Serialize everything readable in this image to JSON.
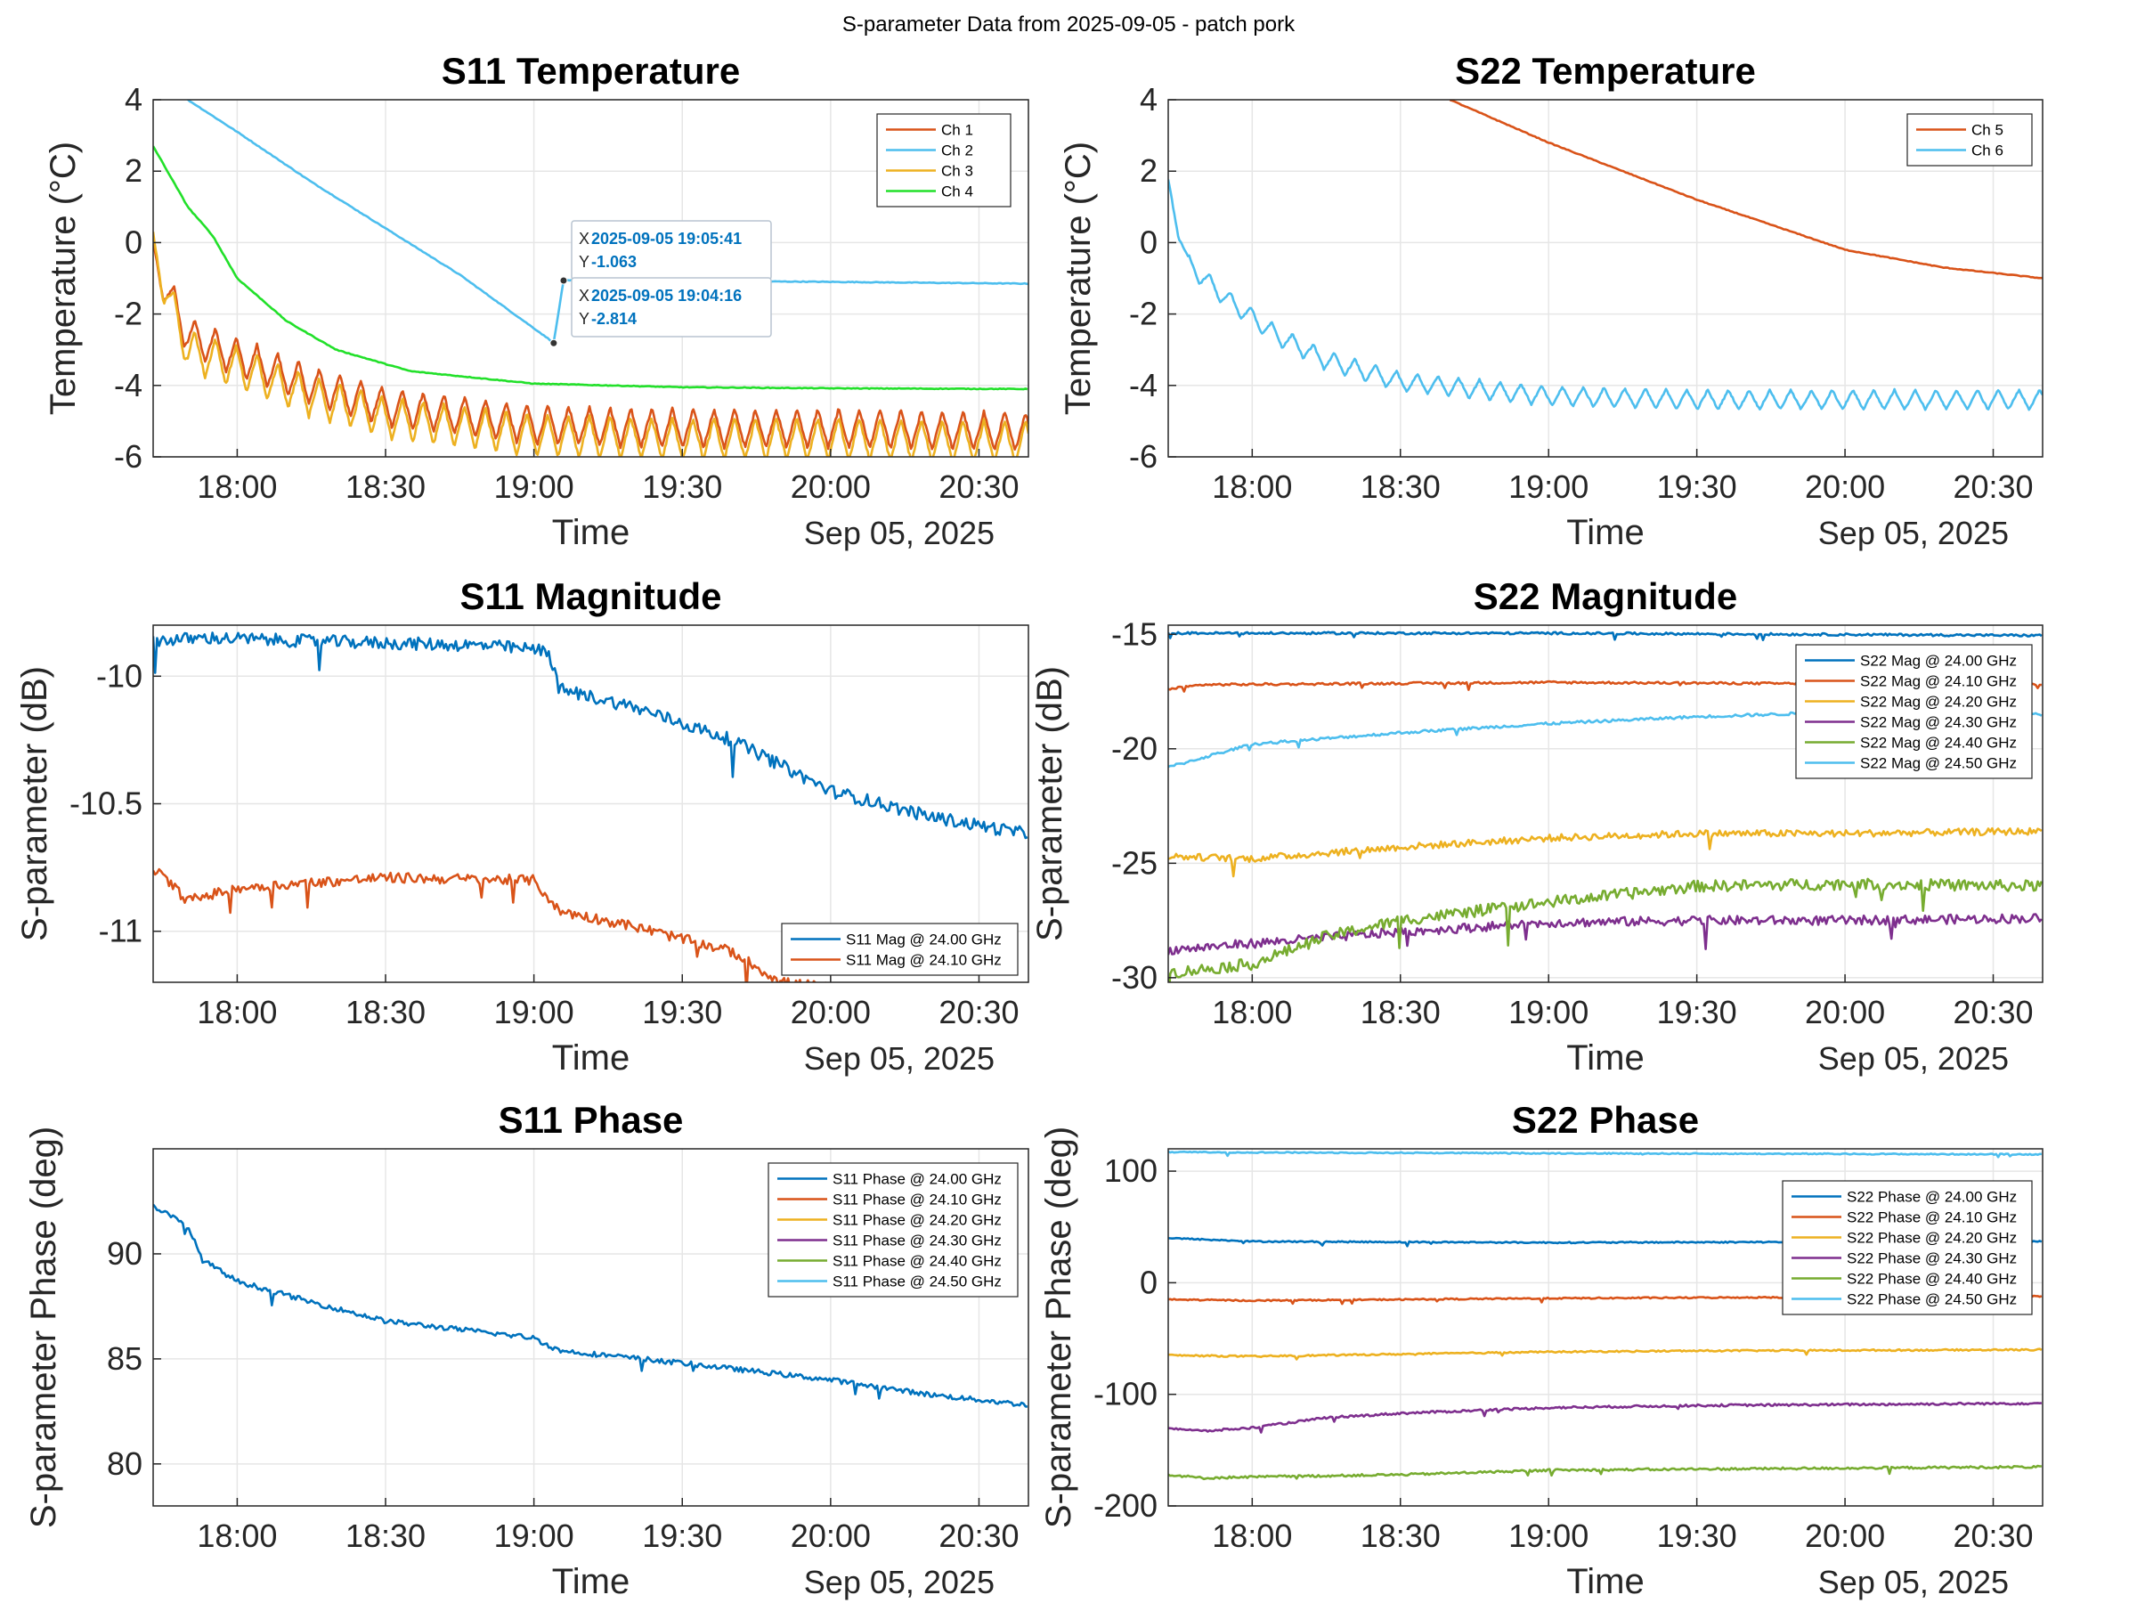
{
  "figure": {
    "suptitle": "S-parameter Data from 2025-09-05 - patch pork"
  },
  "chart_data": [
    {
      "id": "s11_temp",
      "type": "line",
      "title": "S11 Temperature",
      "xlabel": "Time",
      "ylabel": "Temperature (°C)",
      "date_label": "Sep 05, 2025",
      "x_start": "17:43",
      "x_end": "20:40",
      "x_ticks": [
        "18:00",
        "18:30",
        "19:00",
        "19:30",
        "20:00",
        "20:30"
      ],
      "ylim": [
        -6,
        4
      ],
      "y_ticks": [
        -6,
        -4,
        -2,
        0,
        2,
        4
      ],
      "legend_location": "top-right",
      "series": [
        {
          "name": "Ch 1",
          "color": "#d95319",
          "points": [
            [
              "17:43",
              -0.5
            ],
            [
              "17:50",
              -2.6
            ],
            [
              "18:00",
              -3.2
            ],
            [
              "18:15",
              -4.0
            ],
            [
              "18:30",
              -4.6
            ],
            [
              "19:00",
              -5.1
            ],
            [
              "19:30",
              -5.2
            ],
            [
              "20:00",
              -5.2
            ],
            [
              "20:40",
              -5.3
            ]
          ],
          "oscillation": {
            "amplitude": 1.1,
            "period_min": 4.2
          }
        },
        {
          "name": "Ch 2",
          "color": "#4dbeee",
          "points": [
            [
              "17:50",
              4.0
            ],
            [
              "18:00",
              3.1
            ],
            [
              "18:15",
              1.7
            ],
            [
              "18:30",
              0.4
            ],
            [
              "18:45",
              -0.9
            ],
            [
              "19:04",
              -2.8
            ],
            [
              "19:06",
              -1.06
            ],
            [
              "19:30",
              -1.07
            ],
            [
              "20:00",
              -1.1
            ],
            [
              "20:40",
              -1.15
            ]
          ]
        },
        {
          "name": "Ch 3",
          "color": "#edb120",
          "points": [
            [
              "17:43",
              -0.3
            ],
            [
              "17:50",
              -3.0
            ],
            [
              "18:00",
              -3.5
            ],
            [
              "18:15",
              -4.3
            ],
            [
              "18:30",
              -4.9
            ],
            [
              "19:00",
              -5.4
            ],
            [
              "19:30",
              -5.5
            ],
            [
              "20:00",
              -5.5
            ],
            [
              "20:40",
              -5.6
            ]
          ],
          "oscillation": {
            "amplitude": 1.2,
            "period_min": 4.2
          }
        },
        {
          "name": "Ch 4",
          "color": "#22e02a",
          "points": [
            [
              "17:43",
              2.7
            ],
            [
              "17:50",
              1.0
            ],
            [
              "17:55",
              0.2
            ],
            [
              "18:00",
              -1.0
            ],
            [
              "18:10",
              -2.2
            ],
            [
              "18:20",
              -3.0
            ],
            [
              "18:35",
              -3.6
            ],
            [
              "19:00",
              -3.95
            ],
            [
              "19:30",
              -4.05
            ],
            [
              "20:00",
              -4.08
            ],
            [
              "20:40",
              -4.1
            ]
          ]
        }
      ],
      "datatips": [
        {
          "x_label": "X",
          "x_value": "2025-09-05 19:05:41",
          "y_label": "Y",
          "y_value": "-1.063",
          "at": [
            "19:06",
            -1.063
          ]
        },
        {
          "x_label": "X",
          "x_value": "2025-09-05 19:04:16",
          "y_label": "Y",
          "y_value": "-2.814",
          "at": [
            "19:04",
            -2.814
          ]
        }
      ]
    },
    {
      "id": "s22_temp",
      "type": "line",
      "title": "S22 Temperature",
      "xlabel": "Time",
      "ylabel": "Temperature (°C)",
      "date_label": "Sep 05, 2025",
      "x_start": "17:43",
      "x_end": "20:40",
      "x_ticks": [
        "18:00",
        "18:30",
        "19:00",
        "19:30",
        "20:00",
        "20:30"
      ],
      "ylim": [
        -6,
        4
      ],
      "y_ticks": [
        -6,
        -4,
        -2,
        0,
        2,
        4
      ],
      "legend_location": "top-right",
      "series": [
        {
          "name": "Ch 5",
          "color": "#d95319",
          "points": [
            [
              "18:40",
              4.0
            ],
            [
              "19:00",
              2.8
            ],
            [
              "19:30",
              1.2
            ],
            [
              "20:00",
              -0.2
            ],
            [
              "20:20",
              -0.7
            ],
            [
              "20:40",
              -1.0
            ]
          ]
        },
        {
          "name": "Ch 6",
          "color": "#4dbeee",
          "points": [
            [
              "17:43",
              1.5
            ],
            [
              "17:47",
              -0.6
            ],
            [
              "17:55",
              -1.6
            ],
            [
              "18:05",
              -2.6
            ],
            [
              "18:15",
              -3.3
            ],
            [
              "18:30",
              -3.9
            ],
            [
              "19:00",
              -4.3
            ],
            [
              "19:30",
              -4.4
            ],
            [
              "20:00",
              -4.4
            ],
            [
              "20:40",
              -4.4
            ]
          ],
          "oscillation": {
            "amplitude": 0.55,
            "period_min": 4.2
          }
        }
      ]
    },
    {
      "id": "s11_mag",
      "type": "line",
      "title": "S11 Magnitude",
      "xlabel": "Time",
      "ylabel": "S-parameter (dB)",
      "date_label": "Sep 05, 2025",
      "x_start": "17:43",
      "x_end": "20:40",
      "x_ticks": [
        "18:00",
        "18:30",
        "19:00",
        "19:30",
        "20:00",
        "20:30"
      ],
      "ylim": [
        -11.2,
        -9.8
      ],
      "y_ticks": [
        -11,
        -10.5,
        -10
      ],
      "legend_location": "bottom-right",
      "series": [
        {
          "name": "S11 Mag @ 24.00 GHz",
          "color": "#0072bd",
          "points": [
            [
              "17:43",
              -9.86
            ],
            [
              "17:55",
              -9.85
            ],
            [
              "18:10",
              -9.86
            ],
            [
              "18:30",
              -9.87
            ],
            [
              "18:50",
              -9.88
            ],
            [
              "19:03",
              -9.9
            ],
            [
              "19:05",
              -10.05
            ],
            [
              "19:20",
              -10.12
            ],
            [
              "19:40",
              -10.25
            ],
            [
              "20:00",
              -10.45
            ],
            [
              "20:20",
              -10.55
            ],
            [
              "20:40",
              -10.62
            ]
          ],
          "noise": 0.025
        },
        {
          "name": "S11 Mag @ 24.10 GHz",
          "color": "#d95319",
          "points": [
            [
              "17:43",
              -10.75
            ],
            [
              "17:50",
              -10.88
            ],
            [
              "18:00",
              -10.83
            ],
            [
              "18:30",
              -10.79
            ],
            [
              "19:00",
              -10.8
            ],
            [
              "19:05",
              -10.92
            ],
            [
              "19:20",
              -10.98
            ],
            [
              "19:40",
              -11.08
            ],
            [
              "19:50",
              -11.2
            ],
            [
              "20:00",
              -11.22
            ]
          ],
          "noise": 0.02
        }
      ]
    },
    {
      "id": "s22_mag",
      "type": "line",
      "title": "S22 Magnitude",
      "xlabel": "Time",
      "ylabel": "S-parameter (dB)",
      "date_label": "Sep 05, 2025",
      "x_start": "17:43",
      "x_end": "20:40",
      "x_ticks": [
        "18:00",
        "18:30",
        "19:00",
        "19:30",
        "20:00",
        "20:30"
      ],
      "ylim": [
        -30.2,
        -14.6
      ],
      "y_ticks": [
        -30,
        -25,
        -20,
        -15
      ],
      "legend_location": "top-right",
      "series": [
        {
          "name": "S22 Mag @ 24.00 GHz",
          "color": "#0072bd",
          "points": [
            [
              "17:43",
              -14.95
            ],
            [
              "19:00",
              -14.95
            ],
            [
              "20:40",
              -15.05
            ]
          ],
          "noise": 0.05
        },
        {
          "name": "S22 Mag @ 24.10 GHz",
          "color": "#d95319",
          "points": [
            [
              "17:43",
              -17.4
            ],
            [
              "17:50",
              -17.2
            ],
            [
              "19:00",
              -17.1
            ],
            [
              "20:40",
              -17.2
            ]
          ],
          "noise": 0.05
        },
        {
          "name": "S22 Mag @ 24.20 GHz",
          "color": "#edb120",
          "points": [
            [
              "17:43",
              -24.7
            ],
            [
              "18:00",
              -24.8
            ],
            [
              "18:30",
              -24.3
            ],
            [
              "19:00",
              -23.9
            ],
            [
              "19:30",
              -23.7
            ],
            [
              "20:00",
              -23.7
            ],
            [
              "20:40",
              -23.6
            ]
          ],
          "noise": 0.15
        },
        {
          "name": "S22 Mag @ 24.30 GHz",
          "color": "#7e2f8e",
          "points": [
            [
              "17:43",
              -28.8
            ],
            [
              "18:00",
              -28.5
            ],
            [
              "18:30",
              -28.0
            ],
            [
              "19:00",
              -27.6
            ],
            [
              "19:30",
              -27.5
            ],
            [
              "20:00",
              -27.5
            ],
            [
              "20:40",
              -27.4
            ]
          ],
          "noise": 0.2
        },
        {
          "name": "S22 Mag @ 24.40 GHz",
          "color": "#77ac30",
          "points": [
            [
              "17:43",
              -29.8
            ],
            [
              "18:00",
              -29.4
            ],
            [
              "18:15",
              -28.2
            ],
            [
              "18:30",
              -27.5
            ],
            [
              "19:00",
              -26.7
            ],
            [
              "19:30",
              -26.0
            ],
            [
              "20:00",
              -25.9
            ],
            [
              "20:40",
              -26.0
            ]
          ],
          "noise": 0.25
        },
        {
          "name": "S22 Mag @ 24.50 GHz",
          "color": "#4dbeee",
          "points": [
            [
              "17:43",
              -20.8
            ],
            [
              "18:00",
              -19.8
            ],
            [
              "18:30",
              -19.3
            ],
            [
              "19:00",
              -18.9
            ],
            [
              "19:30",
              -18.6
            ],
            [
              "20:00",
              -18.4
            ],
            [
              "20:40",
              -18.5
            ]
          ],
          "noise": 0.06
        }
      ]
    },
    {
      "id": "s11_phase",
      "type": "line",
      "title": "S11 Phase",
      "xlabel": "Time",
      "ylabel": "S-parameter Phase (deg)",
      "date_label": "Sep 05, 2025",
      "x_start": "17:43",
      "x_end": "20:40",
      "x_ticks": [
        "18:00",
        "18:30",
        "19:00",
        "19:30",
        "20:00",
        "20:30"
      ],
      "ylim": [
        78,
        95
      ],
      "y_ticks": [
        80,
        85,
        90
      ],
      "legend_location": "top-right",
      "series": [
        {
          "name": "S11 Phase @ 24.00 GHz",
          "color": "#0072bd",
          "points": [
            [
              "17:43",
              92.3
            ],
            [
              "17:50",
              91.3
            ],
            [
              "17:53",
              89.7
            ],
            [
              "18:00",
              88.7
            ],
            [
              "18:15",
              87.7
            ],
            [
              "18:30",
              86.8
            ],
            [
              "19:00",
              86.0
            ],
            [
              "19:05",
              85.4
            ],
            [
              "19:30",
              84.8
            ],
            [
              "20:00",
              84.0
            ],
            [
              "20:20",
              83.3
            ],
            [
              "20:40",
              82.8
            ]
          ],
          "noise": 0.12
        },
        {
          "name": "S11 Phase @ 24.10 GHz",
          "color": "#d95319",
          "points": []
        },
        {
          "name": "S11 Phase @ 24.20 GHz",
          "color": "#edb120",
          "points": []
        },
        {
          "name": "S11 Phase @ 24.30 GHz",
          "color": "#7e2f8e",
          "points": []
        },
        {
          "name": "S11 Phase @ 24.40 GHz",
          "color": "#77ac30",
          "points": []
        },
        {
          "name": "S11 Phase @ 24.50 GHz",
          "color": "#4dbeee",
          "points": []
        }
      ]
    },
    {
      "id": "s22_phase",
      "type": "line",
      "title": "S22 Phase",
      "xlabel": "Time",
      "ylabel": "S-parameter Phase (deg)",
      "date_label": "Sep 05, 2025",
      "x_start": "17:43",
      "x_end": "20:40",
      "x_ticks": [
        "18:00",
        "18:30",
        "19:00",
        "19:30",
        "20:00",
        "20:30"
      ],
      "ylim": [
        -200,
        120
      ],
      "y_ticks": [
        -200,
        -100,
        0,
        100
      ],
      "legend_location": "top-right",
      "series": [
        {
          "name": "S22 Phase @ 24.00 GHz",
          "color": "#0072bd",
          "points": [
            [
              "17:43",
              40
            ],
            [
              "18:00",
              37
            ],
            [
              "19:00",
              36
            ],
            [
              "20:40",
              37
            ]
          ],
          "noise": 0.6
        },
        {
          "name": "S22 Phase @ 24.10 GHz",
          "color": "#d95319",
          "points": [
            [
              "17:43",
              -15
            ],
            [
              "18:00",
              -16
            ],
            [
              "19:00",
              -14
            ],
            [
              "20:40",
              -12
            ]
          ],
          "noise": 0.6
        },
        {
          "name": "S22 Phase @ 24.20 GHz",
          "color": "#edb120",
          "points": [
            [
              "17:43",
              -65
            ],
            [
              "18:00",
              -66
            ],
            [
              "18:30",
              -64
            ],
            [
              "19:00",
              -62
            ],
            [
              "19:30",
              -61
            ],
            [
              "20:40",
              -60
            ]
          ],
          "noise": 0.7
        },
        {
          "name": "S22 Phase @ 24.30 GHz",
          "color": "#7e2f8e",
          "points": [
            [
              "17:43",
              -130
            ],
            [
              "17:50",
              -133
            ],
            [
              "18:00",
              -130
            ],
            [
              "18:15",
              -121
            ],
            [
              "18:30",
              -117
            ],
            [
              "19:00",
              -112
            ],
            [
              "19:30",
              -110
            ],
            [
              "20:40",
              -108
            ]
          ],
          "noise": 1.0
        },
        {
          "name": "S22 Phase @ 24.40 GHz",
          "color": "#77ac30",
          "points": [
            [
              "17:43",
              -172
            ],
            [
              "17:50",
              -175
            ],
            [
              "18:00",
              -174
            ],
            [
              "18:30",
              -172
            ],
            [
              "19:00",
              -168
            ],
            [
              "19:30",
              -167
            ],
            [
              "20:40",
              -165
            ]
          ],
          "noise": 1.0
        },
        {
          "name": "S22 Phase @ 24.50 GHz",
          "color": "#4dbeee",
          "points": [
            [
              "17:43",
              117
            ],
            [
              "19:00",
              116
            ],
            [
              "20:40",
              115
            ]
          ],
          "noise": 0.5
        }
      ]
    }
  ]
}
